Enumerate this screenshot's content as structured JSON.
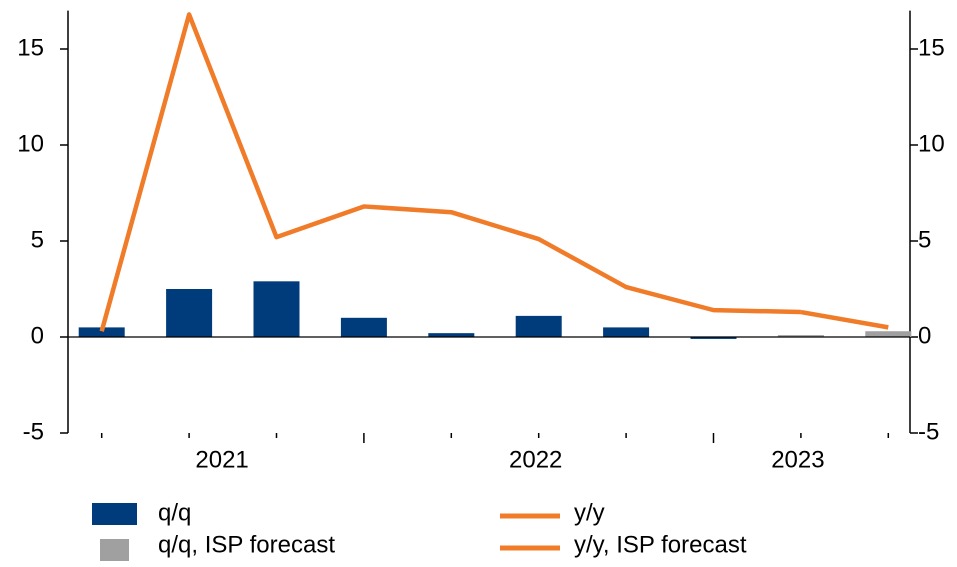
{
  "chart_data": {
    "type": "bar_line",
    "categories": [
      null,
      "2021",
      null,
      null,
      null,
      "2022",
      null,
      null,
      "2023",
      null
    ],
    "series": [
      {
        "name": "q/q",
        "kind": "bar",
        "color": "#003b7b",
        "values": [
          0.5,
          2.5,
          2.9,
          1.0,
          0.2,
          1.1,
          0.5,
          -0.1,
          null,
          null
        ]
      },
      {
        "name": "q/q, ISP forecast",
        "kind": "bar",
        "color": "#a0a0a0",
        "values": [
          null,
          null,
          null,
          null,
          null,
          null,
          null,
          null,
          0.1,
          0.3
        ]
      },
      {
        "name": "y/y",
        "kind": "line",
        "axis": "y2",
        "color": "#f07c2a",
        "values": [
          0.3,
          16.8,
          5.2,
          6.8,
          6.5,
          5.1,
          2.6,
          1.4,
          1.3,
          null
        ]
      },
      {
        "name": "y/y, ISP forecast",
        "kind": "line",
        "axis": "y2",
        "color": "#f07c2a",
        "values": [
          null,
          null,
          null,
          null,
          null,
          null,
          null,
          null,
          1.3,
          0.5
        ]
      }
    ],
    "ylim": [
      -5,
      17
    ],
    "yticks": [
      -5,
      0,
      5,
      10,
      15
    ],
    "y2lim": [
      -5,
      17
    ],
    "y2ticks": [
      -5,
      0,
      5,
      10,
      15
    ]
  }
}
